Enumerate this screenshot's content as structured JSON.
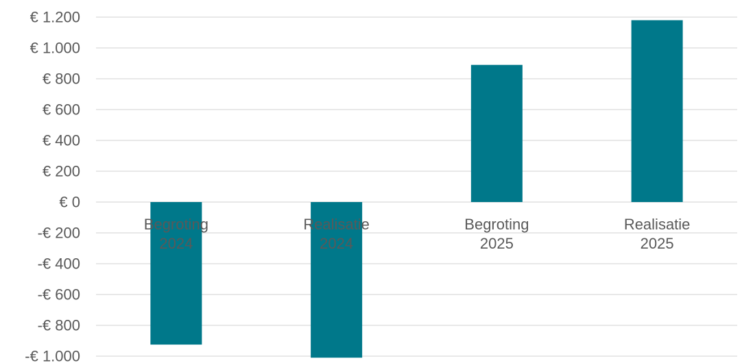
{
  "chart_data": {
    "type": "bar",
    "categories": [
      [
        "Begroting",
        "2024"
      ],
      [
        "Realisatie",
        "2024"
      ],
      [
        "Begroting",
        "2025"
      ],
      [
        "Realisatie",
        "2025"
      ]
    ],
    "values": [
      -925,
      -1010,
      890,
      1180
    ],
    "yticks": [
      1200,
      1000,
      800,
      600,
      400,
      200,
      0,
      -200,
      -400,
      -600,
      -800,
      -1000
    ],
    "ytick_labels": [
      "€ 1.200",
      "€ 1.000",
      "€ 800",
      "€ 600",
      "€ 400",
      "€ 200",
      "€ 0",
      "-€ 200",
      "-€ 400",
      "-€ 600",
      "-€ 800",
      "-€ 1.000"
    ],
    "ylim": [
      -1000,
      1200
    ],
    "bar_color": "#00788A",
    "grid": true,
    "legend": "none"
  }
}
